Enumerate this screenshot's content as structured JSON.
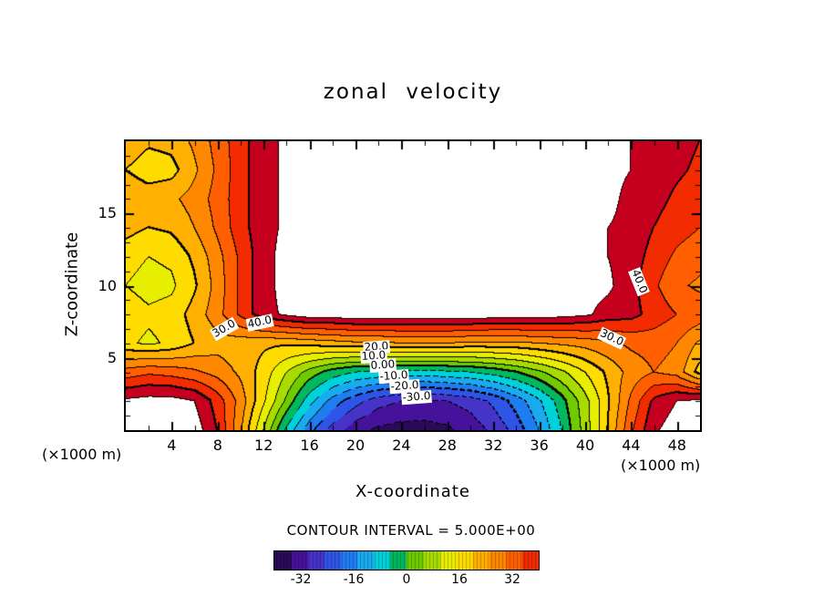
{
  "chart_data": {
    "type": "heatmap",
    "chart_kind": "filled contour plot",
    "title": "zonal velocity",
    "xlabel": "X-coordinate",
    "ylabel": "Z-coordinate",
    "x_units": "(×1000 m)",
    "y_units": "(×1000 m)",
    "xlim": [
      0,
      50
    ],
    "zlim": [
      0,
      20
    ],
    "x_ticks": [
      4,
      8,
      12,
      16,
      20,
      24,
      28,
      32,
      36,
      40,
      44,
      48
    ],
    "y_ticks": [
      5,
      10,
      15
    ],
    "contour_interval": 5,
    "contour_interval_text": "CONTOUR INTERVAL = 5.000E+00",
    "colorbar": {
      "range": [
        -40,
        40
      ],
      "tick_values": [
        -32,
        -16,
        0,
        16,
        32
      ],
      "tick_labels": [
        "-32",
        "-16",
        "0",
        "16",
        "32"
      ]
    },
    "palette": [
      "#2b0b57",
      "#46129b",
      "#4633c8",
      "#2f55e8",
      "#1f7df2",
      "#19aaf0",
      "#00d2dc",
      "#00b85f",
      "#6ecb00",
      "#a8dc00",
      "#e8ee00",
      "#ffdc00",
      "#ffb000",
      "#ff8800",
      "#ff5f00",
      "#f22b00",
      "#c4001e"
    ],
    "white_above": 45,
    "contour_labels": [
      {
        "text": "30.0",
        "x": 8.6,
        "z": 7.0,
        "rot": -30
      },
      {
        "text": "40.0",
        "x": 11.7,
        "z": 7.45,
        "rot": -12
      },
      {
        "text": "20.0",
        "x": 21.8,
        "z": 5.75,
        "rot": -4
      },
      {
        "text": "10.0",
        "x": 21.6,
        "z": 5.1,
        "rot": -4
      },
      {
        "text": "0.00",
        "x": 22.4,
        "z": 4.45,
        "rot": -4
      },
      {
        "text": "-10.0",
        "x": 23.3,
        "z": 3.75,
        "rot": -4
      },
      {
        "text": "-20.0",
        "x": 24.3,
        "z": 3.05,
        "rot": -4
      },
      {
        "text": "-30.0",
        "x": 25.3,
        "z": 2.3,
        "rot": -4
      },
      {
        "text": "30.0",
        "x": 42.3,
        "z": 6.4,
        "rot": 25
      },
      {
        "text": "40.0",
        "x": 44.7,
        "z": 10.3,
        "rot": 68
      }
    ],
    "grid": {
      "x_start": 0,
      "x_step": 2,
      "z_start": 0,
      "z_step": 2,
      "note": "values[row][col]; row 0 = z=0 (bottom), col 0 = x=0 (left); zonal velocity, m/s",
      "values": [
        [
          48,
          50,
          50,
          48,
          40,
          26,
          10,
          -6,
          -18,
          -27,
          -33,
          -36,
          -37,
          -37,
          -36,
          -33,
          -29,
          -23,
          -15,
          -5,
          7,
          20,
          34,
          44,
          48,
          48
        ],
        [
          46,
          47,
          47,
          45,
          38,
          28,
          16,
          4,
          -8,
          -17,
          -23,
          -28,
          -30,
          -31,
          -30,
          -28,
          -24,
          -18,
          -11,
          -2,
          8,
          19,
          31,
          41,
          45,
          46
        ],
        [
          32,
          34,
          33,
          31,
          28,
          24,
          18,
          10,
          3,
          -2,
          -5,
          -6,
          -7,
          -7,
          -6,
          -5,
          -3,
          0,
          4,
          9,
          15,
          21,
          27,
          30,
          28,
          18
        ],
        [
          16,
          14,
          16,
          20,
          23,
          22,
          21,
          21,
          22,
          23,
          24,
          24,
          25,
          25,
          25,
          24,
          24,
          24,
          25,
          26,
          27,
          29,
          31,
          32,
          30,
          24
        ],
        [
          18,
          16,
          17,
          22,
          28,
          36,
          43,
          46,
          48,
          48,
          49,
          49,
          49,
          49,
          49,
          49,
          48,
          48,
          48,
          47,
          46,
          43,
          42,
          38,
          35,
          33
        ],
        [
          15,
          13,
          14,
          19,
          27,
          36,
          43,
          47,
          48,
          49,
          49,
          50,
          50,
          50,
          50,
          49,
          49,
          48,
          48,
          47,
          47,
          46,
          42,
          36,
          31,
          29
        ],
        [
          17,
          15,
          16,
          21,
          28,
          36,
          43,
          47,
          48,
          49,
          49,
          50,
          50,
          50,
          50,
          49,
          49,
          48,
          48,
          47,
          46,
          45,
          43,
          38,
          34,
          32
        ],
        [
          22,
          20,
          21,
          25,
          31,
          38,
          43,
          46,
          48,
          48,
          49,
          49,
          49,
          49,
          49,
          49,
          48,
          48,
          47,
          47,
          46,
          45,
          44,
          40,
          37,
          35
        ],
        [
          25,
          23,
          24,
          27,
          32,
          38,
          43,
          46,
          48,
          48,
          48,
          49,
          49,
          49,
          49,
          48,
          48,
          48,
          47,
          47,
          46,
          46,
          44,
          42,
          39,
          37
        ],
        [
          20,
          17,
          18,
          24,
          31,
          38,
          43,
          46,
          47,
          48,
          48,
          48,
          48,
          48,
          48,
          48,
          48,
          47,
          47,
          46,
          46,
          46,
          45,
          43,
          41,
          39
        ],
        [
          24,
          21,
          22,
          26,
          32,
          38,
          43,
          46,
          47,
          48,
          48,
          48,
          48,
          48,
          48,
          48,
          48,
          47,
          47,
          46,
          46,
          46,
          45,
          44,
          42,
          40
        ]
      ]
    }
  }
}
